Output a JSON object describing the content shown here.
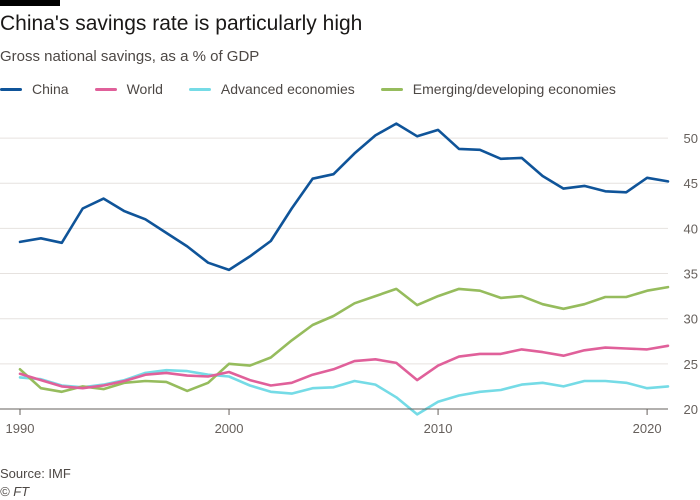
{
  "title": "China's savings rate is particularly high",
  "subtitle": "Gross national savings, as a % of GDP",
  "source": "Source: IMF",
  "credit": "© FT",
  "chart_data": {
    "type": "line",
    "x": [
      1990,
      1991,
      1992,
      1993,
      1994,
      1995,
      1996,
      1997,
      1998,
      1999,
      2000,
      2001,
      2002,
      2003,
      2004,
      2005,
      2006,
      2007,
      2008,
      2009,
      2010,
      2011,
      2012,
      2013,
      2014,
      2015,
      2016,
      2017,
      2018,
      2019,
      2020,
      2021
    ],
    "xlim": [
      1990,
      2021
    ],
    "ylim": [
      20,
      52
    ],
    "x_ticks": [
      1990,
      2000,
      2010,
      2020
    ],
    "y_ticks": [
      20,
      25,
      30,
      35,
      40,
      45,
      50
    ],
    "grid": "horizontal",
    "legend_placement": "top-left",
    "series": [
      {
        "name": "China",
        "color": "#0f5499",
        "values": [
          38.5,
          38.9,
          38.4,
          42.2,
          43.3,
          41.9,
          41.0,
          39.5,
          38.0,
          36.2,
          35.4,
          36.9,
          38.6,
          42.2,
          45.5,
          46.0,
          48.3,
          50.3,
          51.6,
          50.2,
          50.9,
          48.8,
          48.7,
          47.7,
          47.8,
          45.8,
          44.4,
          44.7,
          44.1,
          44.0,
          45.6,
          45.2
        ]
      },
      {
        "name": "World",
        "color": "#e0609a",
        "values": [
          23.9,
          23.2,
          22.5,
          22.3,
          22.6,
          23.1,
          23.8,
          24.0,
          23.7,
          23.6,
          24.1,
          23.2,
          22.6,
          22.9,
          23.8,
          24.4,
          25.3,
          25.5,
          25.1,
          23.2,
          24.8,
          25.8,
          26.1,
          26.1,
          26.6,
          26.3,
          25.9,
          26.5,
          26.8,
          26.7,
          26.6,
          27.0
        ]
      },
      {
        "name": "Advanced economies",
        "color": "#75dbe6",
        "values": [
          23.5,
          23.3,
          22.6,
          22.4,
          22.7,
          23.2,
          24.0,
          24.3,
          24.2,
          23.8,
          23.6,
          22.6,
          21.9,
          21.7,
          22.3,
          22.4,
          23.1,
          22.7,
          21.3,
          19.4,
          20.8,
          21.5,
          21.9,
          22.1,
          22.7,
          22.9,
          22.5,
          23.1,
          23.1,
          22.9,
          22.3,
          22.5
        ]
      },
      {
        "name": "Emerging/developing economies",
        "color": "#96bc5d",
        "values": [
          24.4,
          22.3,
          21.9,
          22.5,
          22.2,
          22.9,
          23.1,
          23.0,
          22.0,
          22.9,
          25.0,
          24.8,
          25.7,
          27.6,
          29.3,
          30.3,
          31.7,
          32.5,
          33.3,
          31.5,
          32.5,
          33.3,
          33.1,
          32.3,
          32.5,
          31.6,
          31.1,
          31.6,
          32.4,
          32.4,
          33.1,
          33.5
        ]
      }
    ]
  }
}
